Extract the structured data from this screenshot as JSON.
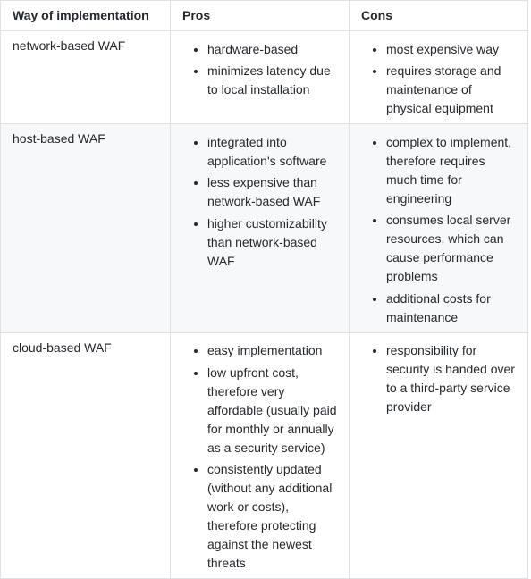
{
  "table": {
    "columns": [
      "Way of implementation",
      "Pros",
      "Cons"
    ],
    "rows": [
      {
        "way": "network-based WAF",
        "pros": [
          "hardware-based",
          "minimizes latency due to local installation"
        ],
        "cons": [
          "most expensive way",
          "requires storage and maintenance of physical equipment"
        ]
      },
      {
        "way": "host-based WAF",
        "pros": [
          "integrated into application's software",
          "less expensive than network-based WAF",
          "higher customizability than network-based WAF"
        ],
        "cons": [
          "complex to implement, therefore requires much time for engineering",
          "consumes local server resources, which can cause performance problems",
          "additional costs for maintenance"
        ]
      },
      {
        "way": "cloud-based WAF",
        "pros": [
          "easy implementation",
          "low upfront cost, therefore very affordable (usually paid for monthly or annually as a security service)",
          "consistently updated (without any additional work or costs), therefore protecting against the newest threats"
        ],
        "cons": [
          "responsibility for security is handed over to a third-party service provider"
        ]
      }
    ]
  },
  "styles": {
    "text_color": "#24292e",
    "border_color": "#dfe2e5",
    "alt_row_bg": "#f6f8fa",
    "bg_color": "#ffffff",
    "font_size": 14
  }
}
